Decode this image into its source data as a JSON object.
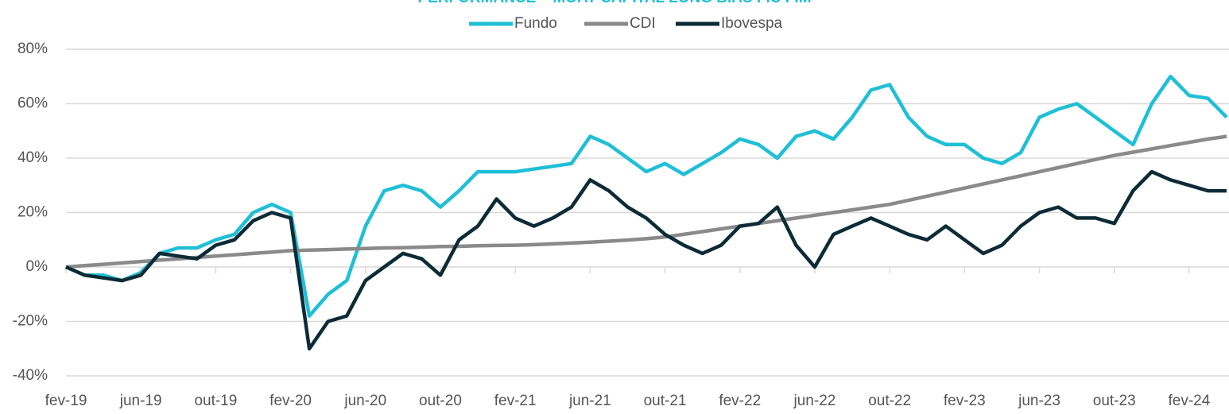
{
  "chart_data": {
    "type": "line",
    "title": "PERFORMANCE – MOAT CAPITAL LONG BIAS FIC FIM",
    "categories": [
      "fev-19",
      null,
      null,
      null,
      "jun-19",
      null,
      null,
      null,
      "out-19",
      null,
      null,
      null,
      "fev-20",
      null,
      null,
      null,
      "jun-20",
      null,
      null,
      null,
      "out-20",
      null,
      null,
      null,
      "fev-21",
      null,
      null,
      null,
      "jun-21",
      null,
      null,
      null,
      "out-21",
      null,
      null,
      null,
      "fev-22",
      null,
      null,
      null,
      "jun-22",
      null,
      null,
      null,
      "out-22",
      null,
      null,
      null,
      "fev-23",
      null,
      null,
      null,
      "jun-23",
      null,
      null,
      null,
      "out-23",
      null,
      null,
      null,
      "fev-24",
      null,
      null
    ],
    "series": [
      {
        "name": "Fundo",
        "color": "#1fbfd6",
        "values": [
          0,
          -3,
          -3,
          -5,
          -2,
          5,
          7,
          7,
          10,
          12,
          20,
          23,
          20,
          -18,
          -10,
          -5,
          15,
          28,
          30,
          28,
          22,
          28,
          35,
          35,
          35,
          36,
          37,
          38,
          48,
          45,
          40,
          35,
          38,
          34,
          38,
          42,
          47,
          45,
          40,
          48,
          50,
          47,
          55,
          65,
          67,
          55,
          48,
          45,
          45,
          40,
          38,
          42,
          55,
          58,
          60,
          55,
          50,
          45,
          60,
          70,
          63,
          62,
          55
        ]
      },
      {
        "name": "CDI",
        "color": "#8a8a8a",
        "values": [
          0,
          0.5,
          1,
          1.5,
          2,
          2.5,
          3,
          3.5,
          4,
          4.5,
          5,
          5.5,
          6,
          6.2,
          6.4,
          6.6,
          6.8,
          7,
          7.1,
          7.3,
          7.5,
          7.6,
          7.8,
          7.9,
          8,
          8.2,
          8.5,
          8.8,
          9.1,
          9.5,
          9.9,
          10.4,
          11,
          12,
          13,
          14,
          15,
          16,
          17,
          18,
          19,
          20,
          21,
          22,
          23,
          24.5,
          26,
          27.5,
          29,
          30.5,
          32,
          33.5,
          35,
          36.5,
          38,
          39.5,
          41,
          42.2,
          43.4,
          44.6,
          45.8,
          47,
          48
        ]
      },
      {
        "name": "Ibovespa",
        "color": "#0d2b36",
        "values": [
          0,
          -3,
          -4,
          -5,
          -3,
          5,
          4,
          3,
          8,
          10,
          17,
          20,
          18,
          -30,
          -20,
          -18,
          -5,
          0,
          5,
          3,
          -3,
          10,
          15,
          25,
          18,
          15,
          18,
          22,
          32,
          28,
          22,
          18,
          12,
          8,
          5,
          8,
          15,
          16,
          22,
          8,
          0,
          12,
          15,
          18,
          15,
          12,
          10,
          15,
          10,
          5,
          8,
          15,
          20,
          22,
          18,
          18,
          16,
          28,
          35,
          32,
          30,
          28,
          28
        ]
      }
    ],
    "ylim": [
      -40,
      80
    ],
    "yticks": [
      {
        "value": -40,
        "label": "-40%"
      },
      {
        "value": -20,
        "label": "-20%"
      },
      {
        "value": 0,
        "label": "0%"
      },
      {
        "value": 20,
        "label": "20%"
      },
      {
        "value": 40,
        "label": "40%"
      },
      {
        "value": 60,
        "label": "60%"
      },
      {
        "value": 80,
        "label": "80%"
      }
    ],
    "grid": true
  }
}
